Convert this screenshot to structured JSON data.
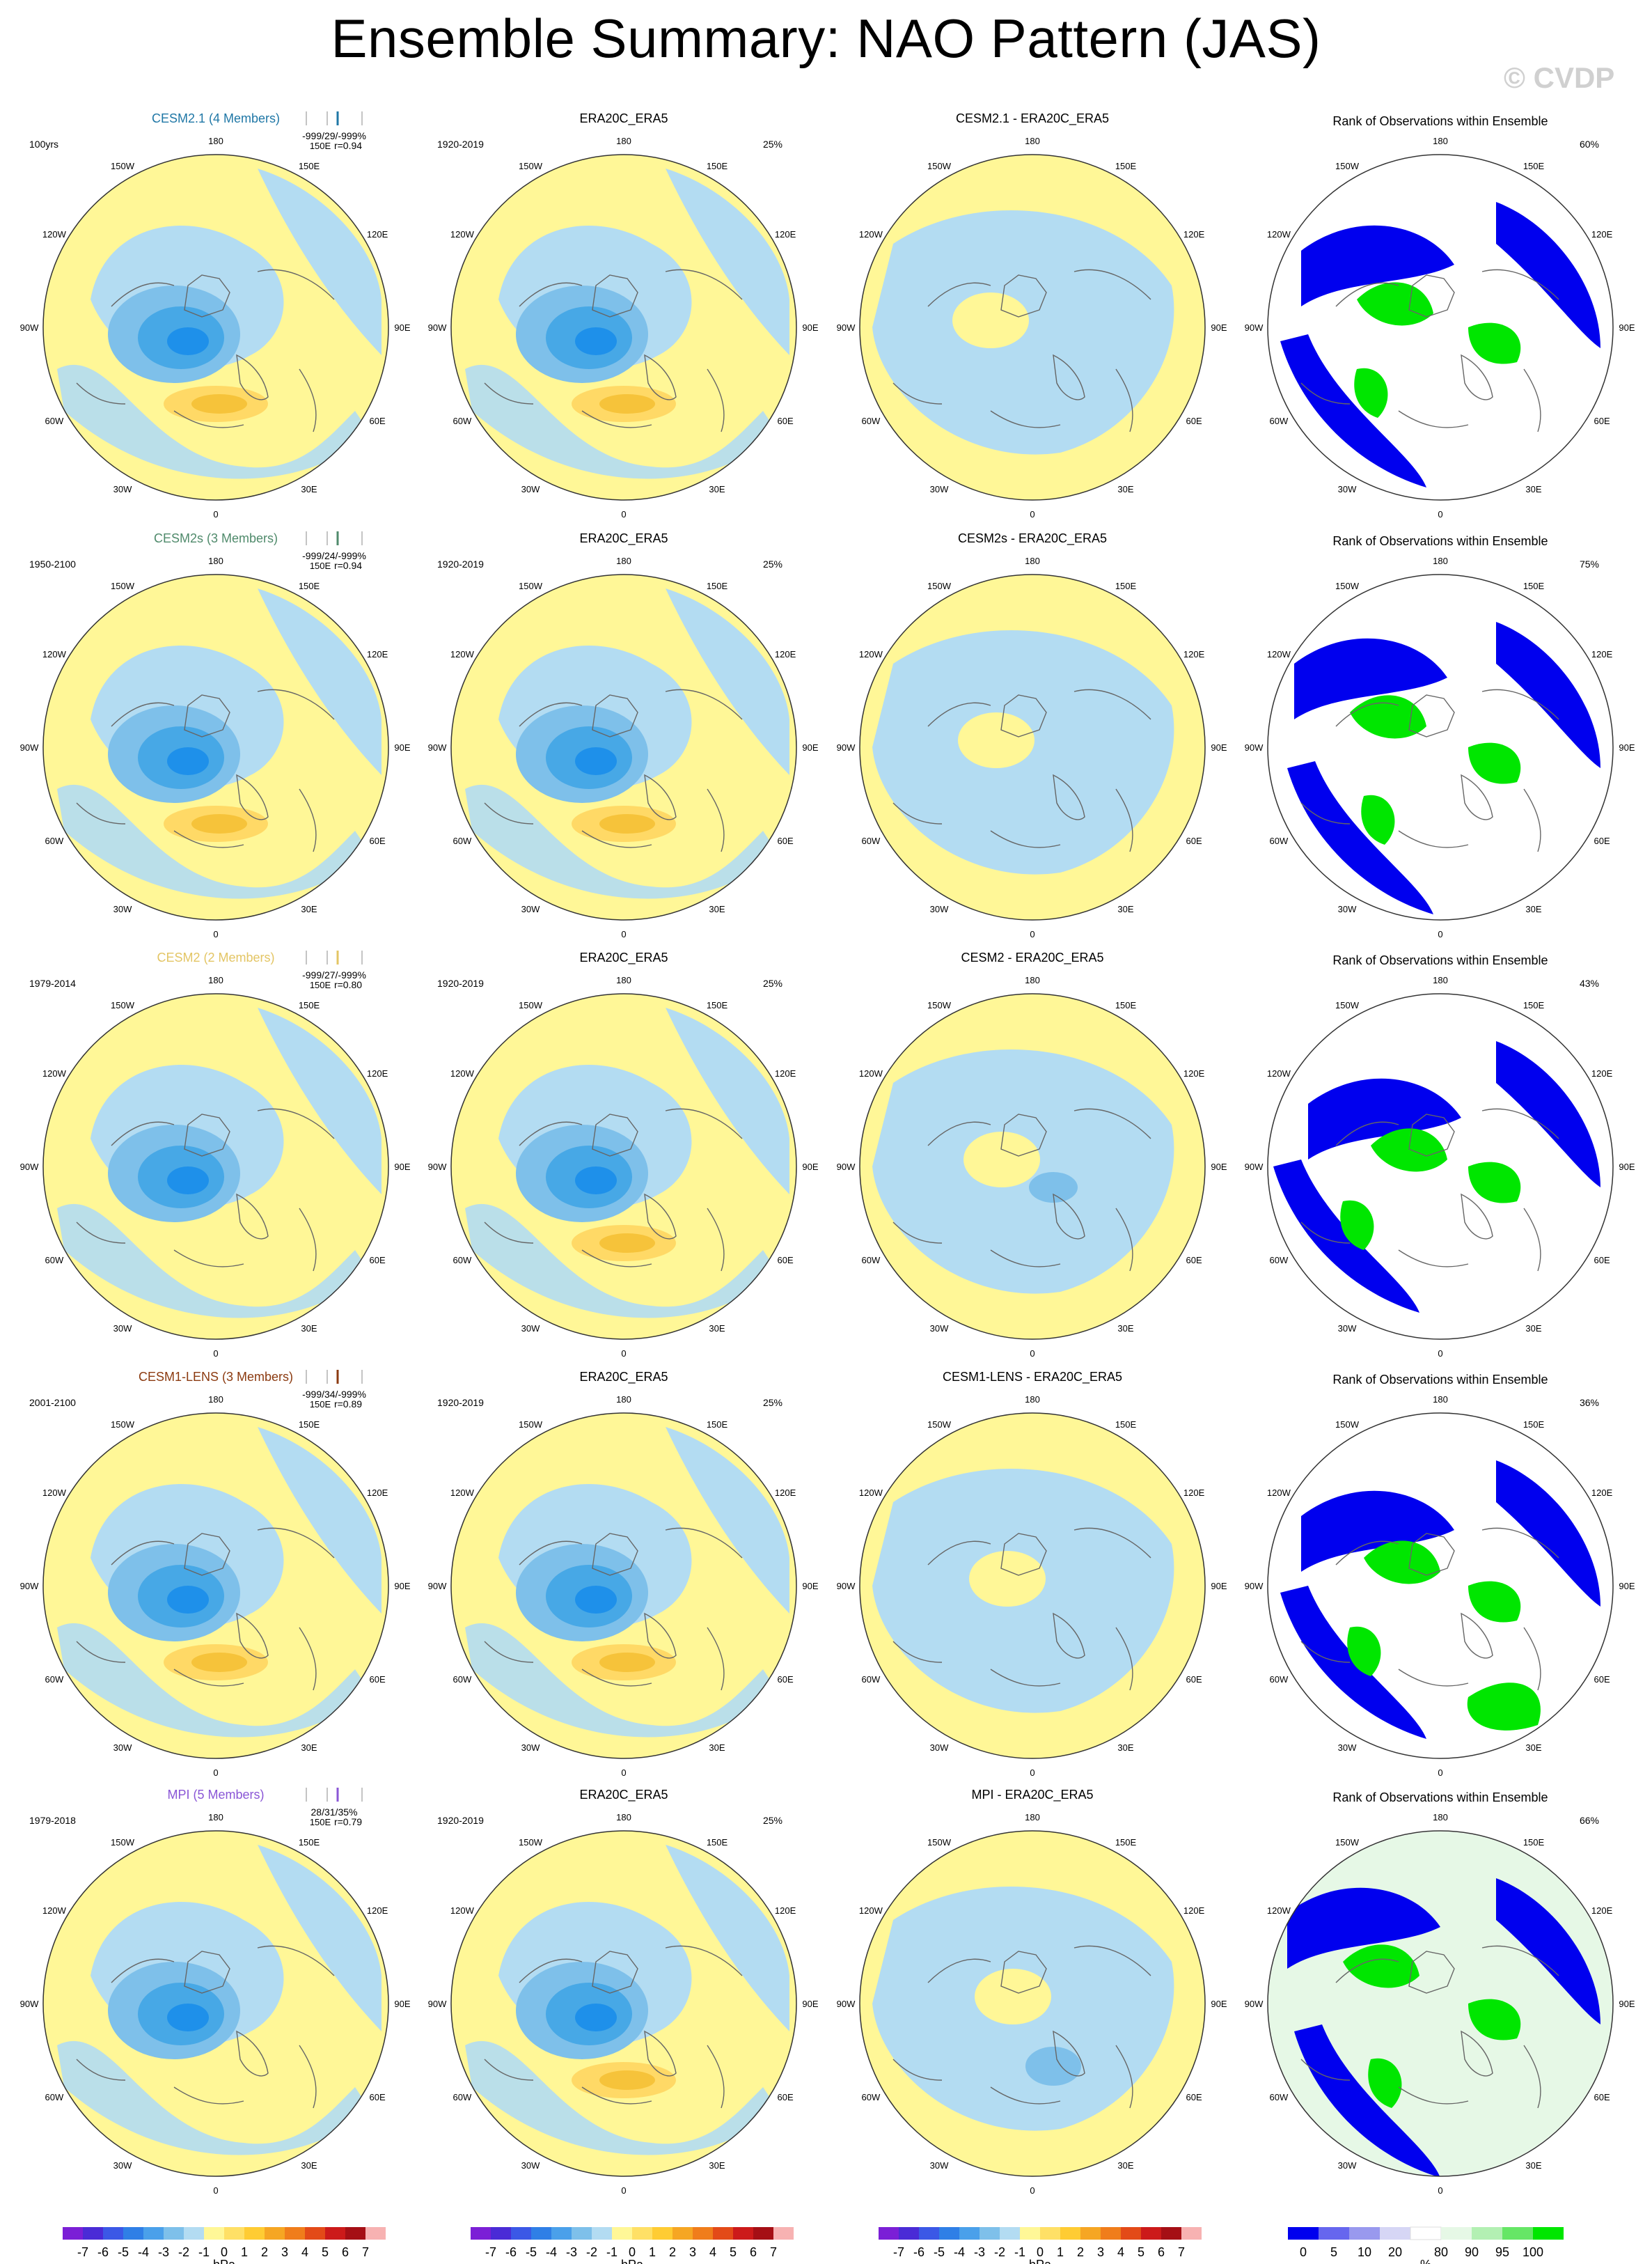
{
  "title": "Ensemble Summary: NAO Pattern (JAS)",
  "watermark": "© CVDP",
  "colors": {
    "negative_light": "#b3dcf2",
    "negative_mid": "#7ec0ea",
    "negative_dark": "#47a8e6",
    "negative_darkest": "#1e90ea",
    "positive_light": "#fff797",
    "positive_mid": "#ffd966",
    "positive_dark": "#f6c33a",
    "rank_high": "#0000ee",
    "rank_low": "#00e600",
    "rank_pale": "#e6f8e6",
    "cesm21": "#1f77a6",
    "cesm2s": "#4f8a6b",
    "cesm2": "#e3c564",
    "cesm1lens": "#8b3a10",
    "mpi": "#8a56d6"
  },
  "longitude_labels": [
    "180",
    "150E",
    "120E",
    "90E",
    "60E",
    "30E",
    "0",
    "30W",
    "60W",
    "90W",
    "120W",
    "150W"
  ],
  "rows": [
    {
      "model": "CESM2.1 (4 Members)",
      "model_color_key": "cesm21",
      "model_period": "100yrs",
      "stats": "-999/29/-999%",
      "corr": "r=0.94",
      "corr_prefix": "150E",
      "obs_title": "ERA20C_ERA5",
      "obs_period": "1920-2019",
      "obs_pct": "25%",
      "diff_title": "CESM2.1 - ERA20C_ERA5",
      "rank_title": "Rank of Observations within Ensemble",
      "rank_pct": "60%"
    },
    {
      "model": "CESM2s (3 Members)",
      "model_color_key": "cesm2s",
      "model_period": "1950-2100",
      "stats": "-999/24/-999%",
      "corr": "r=0.94",
      "corr_prefix": "150E",
      "obs_title": "ERA20C_ERA5",
      "obs_period": "1920-2019",
      "obs_pct": "25%",
      "diff_title": "CESM2s - ERA20C_ERA5",
      "rank_title": "Rank of Observations within Ensemble",
      "rank_pct": "75%"
    },
    {
      "model": "CESM2 (2 Members)",
      "model_color_key": "cesm2",
      "model_period": "1979-2014",
      "stats": "-999/27/-999%",
      "corr": "r=0.80",
      "corr_prefix": "150E",
      "obs_title": "ERA20C_ERA5",
      "obs_period": "1920-2019",
      "obs_pct": "25%",
      "diff_title": "CESM2 - ERA20C_ERA5",
      "rank_title": "Rank of Observations within Ensemble",
      "rank_pct": "43%"
    },
    {
      "model": "CESM1-LENS (3 Members)",
      "model_color_key": "cesm1lens",
      "model_period": "2001-2100",
      "stats": "-999/34/-999%",
      "corr": "r=0.89",
      "corr_prefix": "150E",
      "obs_title": "ERA20C_ERA5",
      "obs_period": "1920-2019",
      "obs_pct": "25%",
      "diff_title": "CESM1-LENS - ERA20C_ERA5",
      "rank_title": "Rank of Observations within Ensemble",
      "rank_pct": "36%"
    },
    {
      "model": "MPI (5 Members)",
      "model_color_key": "mpi",
      "model_period": "1979-2018",
      "stats": "28/31/35%",
      "corr": "r=0.79",
      "corr_prefix": "150E",
      "obs_title": "ERA20C_ERA5",
      "obs_period": "1920-2019",
      "obs_pct": "25%",
      "diff_title": "MPI - ERA20C_ERA5",
      "rank_title": "Rank of Observations within Ensemble",
      "rank_pct": "66%"
    }
  ],
  "chart_data": {
    "type": "heatmap",
    "projection": "north polar stereographic",
    "field": "NAO pattern sea level pressure anomaly",
    "units": "hPa",
    "pattern_levels": [
      -7,
      -6,
      -5,
      -4,
      -3,
      -2,
      -1,
      0,
      1,
      2,
      3,
      4,
      5,
      6,
      7
    ],
    "pattern_colors": [
      "#7b1fd6",
      "#4a2bd6",
      "#3b58e6",
      "#2f7fe6",
      "#4aa0ea",
      "#7ec0ea",
      "#b3dcf2",
      "#fff797",
      "#ffe066",
      "#ffcc33",
      "#f6a623",
      "#f07d1b",
      "#e34a18",
      "#cc1a1a",
      "#a50f15",
      "#f7b2b2"
    ],
    "rank_levels": [
      "0",
      "5",
      "10",
      "20",
      "80",
      "90",
      "95",
      "100"
    ],
    "rank_units": "%",
    "rank_colors": [
      "#0000ee",
      "#6666ee",
      "#9999ee",
      "#d6d6f5",
      "#ffffff",
      "#e6f8e6",
      "#b3f0b3",
      "#66e666",
      "#00e600"
    ]
  },
  "colorbar_unit": "hPa",
  "rank_colorbar_unit": "%"
}
